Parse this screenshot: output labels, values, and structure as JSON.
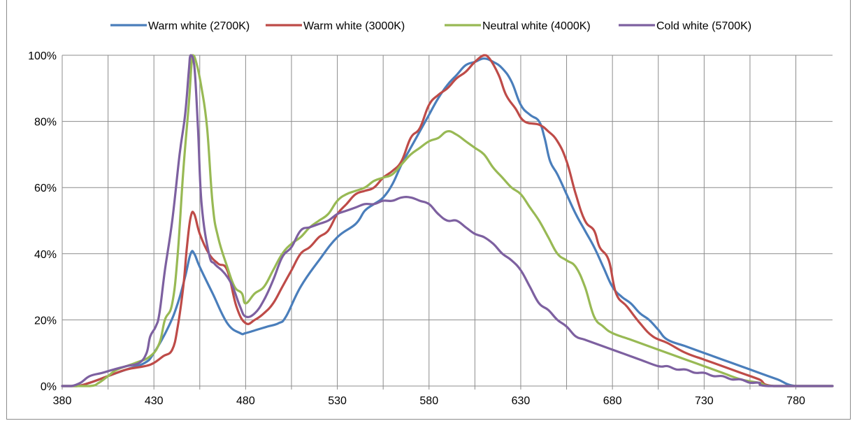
{
  "chart_data": {
    "type": "line",
    "title": "",
    "xlabel": "",
    "ylabel": "",
    "xlim": [
      380,
      800
    ],
    "ylim": [
      0,
      100
    ],
    "x_ticks": [
      380,
      430,
      480,
      530,
      580,
      630,
      680,
      730,
      780
    ],
    "y_ticks": [
      0,
      20,
      40,
      60,
      80,
      100
    ],
    "y_tick_labels": [
      "0%",
      "20%",
      "40%",
      "60%",
      "80%",
      "100%"
    ],
    "grid": true,
    "legend_position": "top",
    "series": [
      {
        "name": "Warm white (2700K)",
        "color": "#4a7ebb",
        "points": [
          [
            380,
            0
          ],
          [
            388,
            0
          ],
          [
            395,
            1
          ],
          [
            405,
            3
          ],
          [
            415,
            5
          ],
          [
            425,
            7
          ],
          [
            430,
            10
          ],
          [
            438,
            18
          ],
          [
            443,
            25
          ],
          [
            447,
            33
          ],
          [
            450,
            40
          ],
          [
            452,
            40
          ],
          [
            455,
            36
          ],
          [
            462,
            28
          ],
          [
            470,
            19
          ],
          [
            477,
            16
          ],
          [
            480,
            16
          ],
          [
            486,
            17
          ],
          [
            492,
            18
          ],
          [
            498,
            19
          ],
          [
            502,
            21
          ],
          [
            510,
            30
          ],
          [
            520,
            38
          ],
          [
            530,
            45
          ],
          [
            540,
            49
          ],
          [
            545,
            53
          ],
          [
            550,
            55
          ],
          [
            555,
            57
          ],
          [
            560,
            61
          ],
          [
            565,
            67
          ],
          [
            570,
            72
          ],
          [
            575,
            77
          ],
          [
            580,
            82
          ],
          [
            585,
            87
          ],
          [
            590,
            91
          ],
          [
            595,
            94
          ],
          [
            600,
            97
          ],
          [
            605,
            98
          ],
          [
            610,
            99
          ],
          [
            615,
            98
          ],
          [
            620,
            96
          ],
          [
            625,
            92
          ],
          [
            630,
            85
          ],
          [
            635,
            82
          ],
          [
            640,
            80
          ],
          [
            643,
            75
          ],
          [
            646,
            68
          ],
          [
            650,
            64
          ],
          [
            655,
            58
          ],
          [
            660,
            52
          ],
          [
            665,
            47
          ],
          [
            670,
            42
          ],
          [
            675,
            36
          ],
          [
            680,
            30
          ],
          [
            685,
            27
          ],
          [
            690,
            25
          ],
          [
            695,
            22
          ],
          [
            700,
            20
          ],
          [
            705,
            17
          ],
          [
            710,
            14
          ],
          [
            720,
            12
          ],
          [
            730,
            10
          ],
          [
            740,
            8
          ],
          [
            750,
            6
          ],
          [
            760,
            4
          ],
          [
            770,
            2
          ],
          [
            780,
            0
          ],
          [
            800,
            0
          ]
        ]
      },
      {
        "name": "Warm white (3000K)",
        "color": "#be4b48",
        "points": [
          [
            380,
            0
          ],
          [
            388,
            0
          ],
          [
            395,
            1
          ],
          [
            405,
            3
          ],
          [
            415,
            5
          ],
          [
            425,
            6
          ],
          [
            430,
            7
          ],
          [
            435,
            9
          ],
          [
            440,
            11
          ],
          [
            443,
            18
          ],
          [
            446,
            30
          ],
          [
            448,
            42
          ],
          [
            450,
            51
          ],
          [
            452,
            52
          ],
          [
            455,
            46
          ],
          [
            460,
            40
          ],
          [
            465,
            37
          ],
          [
            470,
            35
          ],
          [
            475,
            24
          ],
          [
            480,
            19
          ],
          [
            485,
            20
          ],
          [
            490,
            22
          ],
          [
            495,
            25
          ],
          [
            500,
            30
          ],
          [
            505,
            35
          ],
          [
            510,
            40
          ],
          [
            515,
            42
          ],
          [
            520,
            45
          ],
          [
            525,
            47
          ],
          [
            530,
            52
          ],
          [
            535,
            55
          ],
          [
            540,
            58
          ],
          [
            545,
            59
          ],
          [
            550,
            60
          ],
          [
            555,
            63
          ],
          [
            560,
            65
          ],
          [
            565,
            68
          ],
          [
            570,
            75
          ],
          [
            575,
            78
          ],
          [
            580,
            85
          ],
          [
            585,
            88
          ],
          [
            590,
            90
          ],
          [
            595,
            93
          ],
          [
            600,
            95
          ],
          [
            605,
            98
          ],
          [
            610,
            100
          ],
          [
            613,
            99
          ],
          [
            618,
            94
          ],
          [
            622,
            88
          ],
          [
            627,
            84
          ],
          [
            632,
            80
          ],
          [
            640,
            79
          ],
          [
            645,
            77
          ],
          [
            650,
            74
          ],
          [
            655,
            68
          ],
          [
            660,
            58
          ],
          [
            665,
            50
          ],
          [
            670,
            47
          ],
          [
            673,
            42
          ],
          [
            678,
            38
          ],
          [
            682,
            28
          ],
          [
            688,
            24
          ],
          [
            695,
            19
          ],
          [
            702,
            15
          ],
          [
            710,
            13
          ],
          [
            720,
            10
          ],
          [
            730,
            8
          ],
          [
            740,
            6
          ],
          [
            750,
            4
          ],
          [
            760,
            2
          ],
          [
            768,
            0
          ],
          [
            800,
            0
          ]
        ]
      },
      {
        "name": "Neutral white (4000K)",
        "color": "#98b954",
        "points": [
          [
            380,
            0
          ],
          [
            395,
            0
          ],
          [
            400,
            1
          ],
          [
            405,
            3
          ],
          [
            410,
            5
          ],
          [
            420,
            7
          ],
          [
            428,
            9
          ],
          [
            433,
            13
          ],
          [
            436,
            20
          ],
          [
            440,
            25
          ],
          [
            443,
            40
          ],
          [
            446,
            65
          ],
          [
            449,
            85
          ],
          [
            451,
            100
          ],
          [
            453,
            98
          ],
          [
            456,
            90
          ],
          [
            459,
            78
          ],
          [
            462,
            55
          ],
          [
            465,
            45
          ],
          [
            470,
            36
          ],
          [
            474,
            30
          ],
          [
            478,
            28
          ],
          [
            480,
            25
          ],
          [
            485,
            28
          ],
          [
            490,
            30
          ],
          [
            495,
            35
          ],
          [
            500,
            40
          ],
          [
            505,
            43
          ],
          [
            510,
            45
          ],
          [
            515,
            48
          ],
          [
            520,
            50
          ],
          [
            525,
            52
          ],
          [
            530,
            56
          ],
          [
            535,
            58
          ],
          [
            540,
            59
          ],
          [
            545,
            60
          ],
          [
            550,
            62
          ],
          [
            555,
            63
          ],
          [
            560,
            64
          ],
          [
            565,
            67
          ],
          [
            570,
            70
          ],
          [
            575,
            72
          ],
          [
            580,
            74
          ],
          [
            585,
            75
          ],
          [
            590,
            77
          ],
          [
            595,
            76
          ],
          [
            600,
            74
          ],
          [
            605,
            72
          ],
          [
            610,
            70
          ],
          [
            615,
            66
          ],
          [
            620,
            63
          ],
          [
            625,
            60
          ],
          [
            630,
            58
          ],
          [
            635,
            54
          ],
          [
            640,
            50
          ],
          [
            645,
            45
          ],
          [
            650,
            40
          ],
          [
            655,
            38
          ],
          [
            660,
            36
          ],
          [
            665,
            30
          ],
          [
            670,
            21
          ],
          [
            675,
            18
          ],
          [
            680,
            16
          ],
          [
            690,
            14
          ],
          [
            700,
            12
          ],
          [
            710,
            10
          ],
          [
            720,
            8
          ],
          [
            730,
            6
          ],
          [
            740,
            4
          ],
          [
            750,
            2
          ],
          [
            760,
            1
          ],
          [
            768,
            0
          ],
          [
            800,
            0
          ]
        ]
      },
      {
        "name": "Cold white (5700K)",
        "color": "#7d60a0",
        "points": [
          [
            380,
            0
          ],
          [
            385,
            0
          ],
          [
            390,
            1
          ],
          [
            395,
            3
          ],
          [
            402,
            4
          ],
          [
            408,
            5
          ],
          [
            415,
            6
          ],
          [
            422,
            7
          ],
          [
            426,
            10
          ],
          [
            428,
            15
          ],
          [
            431,
            18
          ],
          [
            433,
            22
          ],
          [
            436,
            35
          ],
          [
            440,
            50
          ],
          [
            444,
            70
          ],
          [
            447,
            82
          ],
          [
            449,
            95
          ],
          [
            450,
            100
          ],
          [
            452,
            97
          ],
          [
            454,
            78
          ],
          [
            456,
            55
          ],
          [
            460,
            40
          ],
          [
            463,
            37
          ],
          [
            467,
            35
          ],
          [
            470,
            33
          ],
          [
            473,
            30
          ],
          [
            477,
            24
          ],
          [
            480,
            21
          ],
          [
            485,
            22
          ],
          [
            490,
            26
          ],
          [
            495,
            32
          ],
          [
            500,
            39
          ],
          [
            505,
            42
          ],
          [
            510,
            47
          ],
          [
            515,
            48
          ],
          [
            520,
            49
          ],
          [
            525,
            50
          ],
          [
            530,
            52
          ],
          [
            535,
            53
          ],
          [
            540,
            54
          ],
          [
            545,
            55
          ],
          [
            550,
            55
          ],
          [
            555,
            56
          ],
          [
            560,
            56
          ],
          [
            565,
            57
          ],
          [
            570,
            57
          ],
          [
            575,
            56
          ],
          [
            580,
            55
          ],
          [
            585,
            52
          ],
          [
            590,
            50
          ],
          [
            595,
            50
          ],
          [
            600,
            48
          ],
          [
            605,
            46
          ],
          [
            610,
            45
          ],
          [
            615,
            43
          ],
          [
            620,
            40
          ],
          [
            625,
            38
          ],
          [
            630,
            35
          ],
          [
            635,
            30
          ],
          [
            640,
            25
          ],
          [
            645,
            23
          ],
          [
            650,
            20
          ],
          [
            655,
            18
          ],
          [
            660,
            15
          ],
          [
            665,
            14
          ],
          [
            675,
            12
          ],
          [
            685,
            10
          ],
          [
            695,
            8
          ],
          [
            705,
            6
          ],
          [
            710,
            6
          ],
          [
            715,
            5
          ],
          [
            720,
            5
          ],
          [
            725,
            4
          ],
          [
            730,
            4
          ],
          [
            735,
            3
          ],
          [
            740,
            3
          ],
          [
            745,
            2
          ],
          [
            750,
            2
          ],
          [
            755,
            1
          ],
          [
            760,
            1
          ],
          [
            765,
            0
          ],
          [
            800,
            0
          ]
        ]
      }
    ]
  }
}
